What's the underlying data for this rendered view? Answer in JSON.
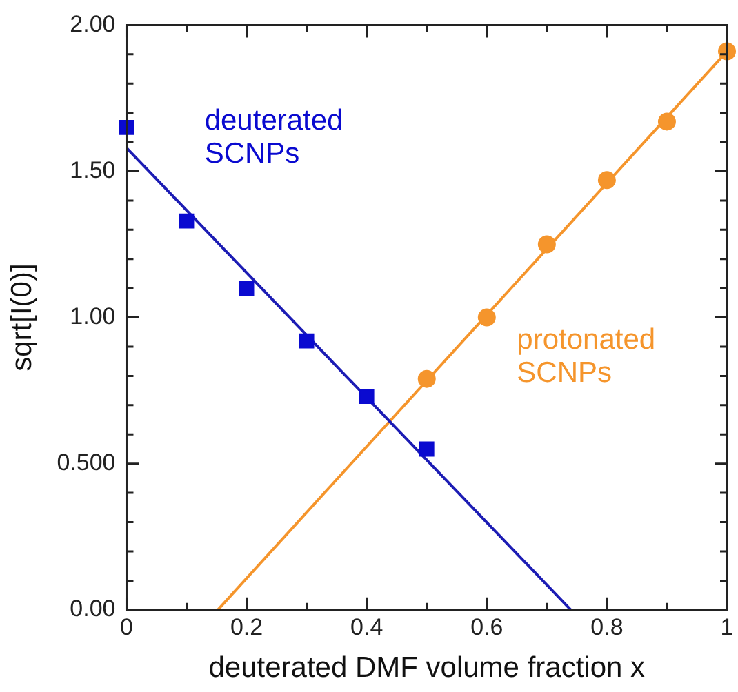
{
  "chart_data": {
    "type": "scatter",
    "xlabel": "deuterated DMF volume fraction x",
    "ylabel": "sqrt[I(0)]",
    "xlim": [
      0,
      1
    ],
    "xticks": [
      0,
      0.2,
      0.4,
      0.6,
      0.8,
      1
    ],
    "ylim": [
      0,
      2
    ],
    "yticks": [
      {
        "value": 0,
        "label": "0.00"
      },
      {
        "value": 0.5,
        "label": "0.500"
      },
      {
        "value": 1,
        "label": "1.00"
      },
      {
        "value": 1.5,
        "label": "1.50"
      },
      {
        "value": 2,
        "label": "2.00"
      }
    ],
    "grid": false,
    "legend": false,
    "series": [
      {
        "name": "deuterated SCNPs",
        "type": "scatter",
        "marker": "square",
        "color": "#0a0ad0",
        "x": [
          0,
          0.1,
          0.2,
          0.3,
          0.4,
          0.5
        ],
        "values": [
          1.65,
          1.33,
          1.1,
          0.92,
          0.73,
          0.55
        ]
      },
      {
        "type": "line",
        "marker": "none",
        "color": "#1c1cb4",
        "x": [
          0,
          0.74
        ],
        "values": [
          1.58,
          0
        ]
      },
      {
        "name": "protonated SCNPs",
        "type": "scatter",
        "marker": "circle",
        "color": "#f5952c",
        "x": [
          0.5,
          0.6,
          0.7,
          0.8,
          0.9,
          1.0
        ],
        "values": [
          0.79,
          1.0,
          1.25,
          1.47,
          1.67,
          1.91
        ]
      },
      {
        "type": "line",
        "marker": "none",
        "color": "#f5952c",
        "x": [
          0.152,
          1.0
        ],
        "values": [
          0,
          1.91
        ]
      }
    ]
  }
}
